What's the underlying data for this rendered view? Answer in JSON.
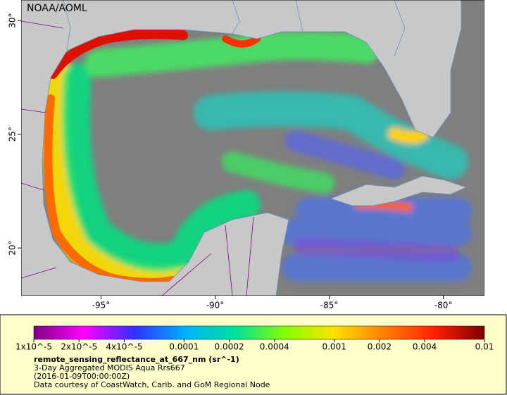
{
  "map": {
    "title": "NOAA/AOML",
    "xlim": [
      -98.5,
      -78.2
    ],
    "ylim": [
      17.9,
      30.9
    ],
    "xticks": [
      {
        "value": -95,
        "label": "-95°"
      },
      {
        "value": -90,
        "label": "-90°"
      },
      {
        "value": -85,
        "label": "-85°"
      },
      {
        "value": -80,
        "label": "-80°"
      }
    ],
    "yticks": [
      {
        "value": 20,
        "label": "20°"
      },
      {
        "value": 25,
        "label": "25°"
      },
      {
        "value": 30,
        "label": "30°"
      }
    ]
  },
  "colorbar": {
    "log": true,
    "range": [
      1e-05,
      0.01
    ],
    "colors": [
      "#800080",
      "#ff00ff",
      "#3030ff",
      "#00b0ff",
      "#00e0a0",
      "#80ff00",
      "#ffe000",
      "#ff8000",
      "#ff2000",
      "#800000"
    ],
    "ticks": [
      {
        "value": 1e-05,
        "label": "1x10^-5"
      },
      {
        "value": 2e-05,
        "label": "2x10^-5"
      },
      {
        "value": 4e-05,
        "label": "4x10^-5"
      },
      0.0001,
      0.0002,
      0.0004,
      0.001,
      0.002,
      0.004,
      0.01
    ],
    "variable": "remote_sensing_reflectance_at_667_nm (sr^-1)",
    "lines": [
      "3-Day Aggregated MODIS Aqua Rrs667",
      "(2016-01-09T00:00:00Z)",
      "Data courtesy of CoastWatch, Carib. and GoM Regional Node"
    ]
  }
}
